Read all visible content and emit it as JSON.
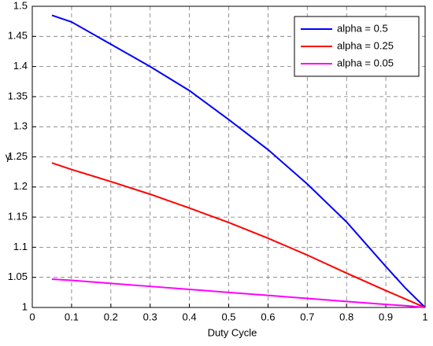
{
  "chart_data": {
    "type": "line",
    "x_label": "Duty Cycle",
    "y_label": "γ",
    "x": [
      0.05,
      0.1,
      0.2,
      0.3,
      0.4,
      0.5,
      0.6,
      0.7,
      0.8,
      0.9,
      0.95,
      1
    ],
    "series": [
      {
        "name": "alpha = 0.5",
        "color": "#0000ff",
        "values": [
          1.485,
          1.474,
          1.437,
          1.4,
          1.36,
          1.312,
          1.262,
          1.205,
          1.142,
          1.068,
          1.032,
          1.0
        ]
      },
      {
        "name": "alpha = 0.25",
        "color": "#ff0000",
        "values": [
          1.24,
          1.229,
          1.209,
          1.188,
          1.165,
          1.141,
          1.115,
          1.087,
          1.057,
          1.028,
          1.014,
          1.0
        ]
      },
      {
        "name": "alpha = 0.05",
        "color": "#ff00ff",
        "values": [
          1.047,
          1.045,
          1.04,
          1.035,
          1.03,
          1.025,
          1.02,
          1.015,
          1.01,
          1.005,
          1.003,
          1.0
        ]
      }
    ],
    "xlim": [
      0,
      1
    ],
    "ylim": [
      1,
      1.5
    ],
    "xticks": [
      0,
      0.1,
      0.2,
      0.3,
      0.4,
      0.5,
      0.6,
      0.7,
      0.8,
      0.9,
      1
    ],
    "yticks": [
      1,
      1.05,
      1.1,
      1.15,
      1.2,
      1.25,
      1.3,
      1.35,
      1.4,
      1.45,
      1.5
    ],
    "grid": true,
    "legend": "upper right"
  }
}
